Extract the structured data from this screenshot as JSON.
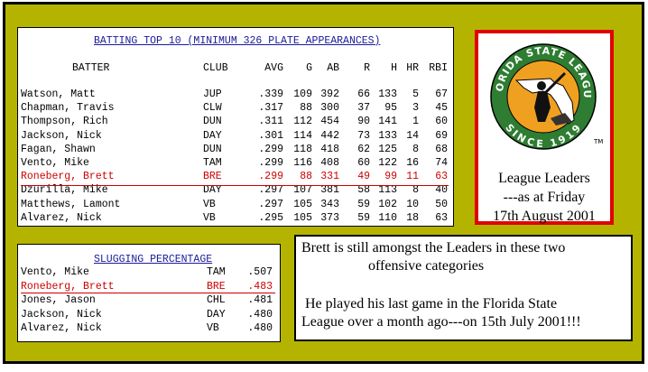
{
  "batting": {
    "title": "BATTING TOP 10 (MINIMUM 326 PLATE APPEARANCES)",
    "headers": [
      "BATTER",
      "CLUB",
      "AVG",
      "G",
      "AB",
      "R",
      "H",
      "HR",
      "RBI"
    ],
    "rows": [
      {
        "batter": "Watson, Matt",
        "club": "JUP",
        "avg": ".339",
        "g": "109",
        "ab": "392",
        "r": "66",
        "h": "133",
        "hr": "5",
        "rbi": "67"
      },
      {
        "batter": "Chapman, Travis",
        "club": "CLW",
        "avg": ".317",
        "g": "88",
        "ab": "300",
        "r": "37",
        "h": "95",
        "hr": "3",
        "rbi": "45"
      },
      {
        "batter": "Thompson, Rich",
        "club": "DUN",
        "avg": ".311",
        "g": "112",
        "ab": "454",
        "r": "90",
        "h": "141",
        "hr": "1",
        "rbi": "60"
      },
      {
        "batter": "Jackson, Nick",
        "club": "DAY",
        "avg": ".301",
        "g": "114",
        "ab": "442",
        "r": "73",
        "h": "133",
        "hr": "14",
        "rbi": "69"
      },
      {
        "batter": "Fagan, Shawn",
        "club": "DUN",
        "avg": ".299",
        "g": "118",
        "ab": "418",
        "r": "62",
        "h": "125",
        "hr": "8",
        "rbi": "68"
      },
      {
        "batter": "Vento, Mike",
        "club": "TAM",
        "avg": ".299",
        "g": "116",
        "ab": "408",
        "r": "60",
        "h": "122",
        "hr": "16",
        "rbi": "74"
      },
      {
        "batter": "Roneberg, Brett",
        "club": "BRE",
        "avg": ".299",
        "g": "88",
        "ab": "331",
        "r": "49",
        "h": "99",
        "hr": "11",
        "rbi": "63",
        "highlight": true
      },
      {
        "batter": "Dzurilla, Mike",
        "club": "DAY",
        "avg": ".297",
        "g": "107",
        "ab": "381",
        "r": "58",
        "h": "113",
        "hr": "8",
        "rbi": "40"
      },
      {
        "batter": "Matthews, Lamont",
        "club": "VB",
        "avg": ".297",
        "g": "105",
        "ab": "343",
        "r": "59",
        "h": "102",
        "hr": "10",
        "rbi": "50"
      },
      {
        "batter": "Alvarez, Nick",
        "club": "VB",
        "avg": ".295",
        "g": "105",
        "ab": "373",
        "r": "59",
        "h": "110",
        "hr": "18",
        "rbi": "63"
      }
    ]
  },
  "slugging": {
    "title": "SLUGGING PERCENTAGE",
    "rows": [
      {
        "batter": "Vento, Mike",
        "club": "TAM",
        "pct": ".507"
      },
      {
        "batter": "Roneberg, Brett",
        "club": "BRE",
        "pct": ".483",
        "highlight": true
      },
      {
        "batter": "Jones, Jason",
        "club": "CHL",
        "pct": ".481"
      },
      {
        "batter": "Jackson, Nick",
        "club": "DAY",
        "pct": ".480"
      },
      {
        "batter": "Alvarez, Nick",
        "club": "VB",
        "pct": ".480"
      }
    ]
  },
  "logo": {
    "top_text": "FLORIDA STATE LEAGUE",
    "bottom_text": "SINCE 1919",
    "tm": "TM"
  },
  "leaders": {
    "line1": "League Leaders",
    "line2": "---as at Friday",
    "line3": "17th August 2001"
  },
  "note": {
    "line1": "Brett is still amongst the Leaders in these two",
    "line2": "offensive categories",
    "line3": "He played his last game in the Florida State",
    "line4": "League over a month ago---on 15th July 2001!!!"
  },
  "colors": {
    "background": "#b4b400",
    "highlight": "#cc0000",
    "title_blue": "#1a1a99",
    "logo_border": "#e00000",
    "logo_orange": "#f0a020",
    "logo_green": "#2e7d32"
  }
}
